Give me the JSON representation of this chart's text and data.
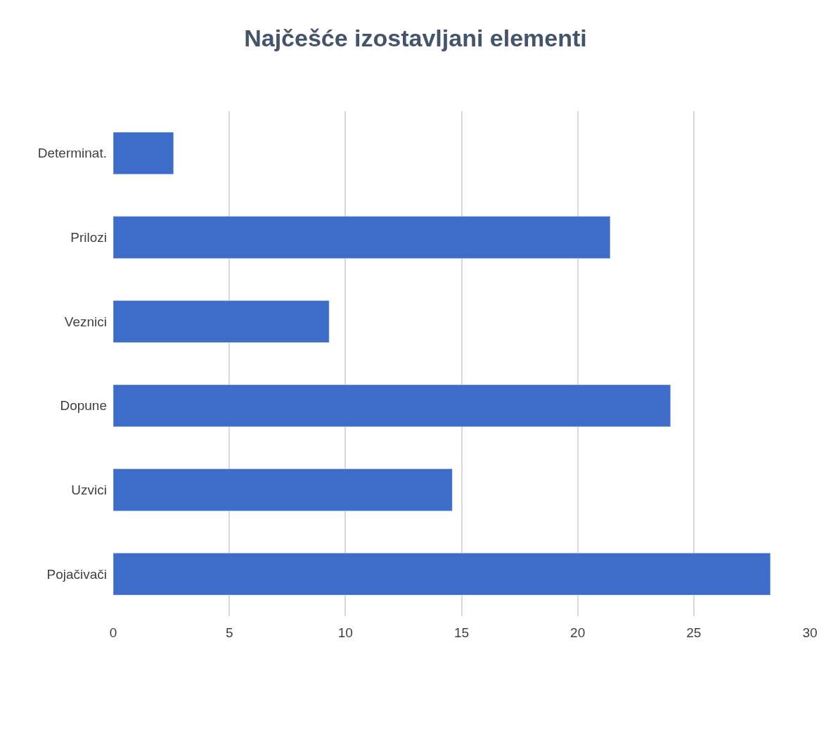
{
  "chart_data": {
    "type": "bar",
    "orientation": "horizontal",
    "title": "Najčešće izostavljani elementi",
    "categories": [
      "Determinat.",
      "Prilozi",
      "Veznici",
      "Dopune",
      "Uzvici",
      "Pojačivači"
    ],
    "values": [
      2.6,
      21.4,
      9.3,
      24,
      14.6,
      28.3
    ],
    "color": "#3d6cc9",
    "xlim": [
      0,
      30
    ],
    "xticks": [
      0,
      5,
      10,
      15,
      20,
      25,
      30
    ],
    "grid": "x"
  }
}
